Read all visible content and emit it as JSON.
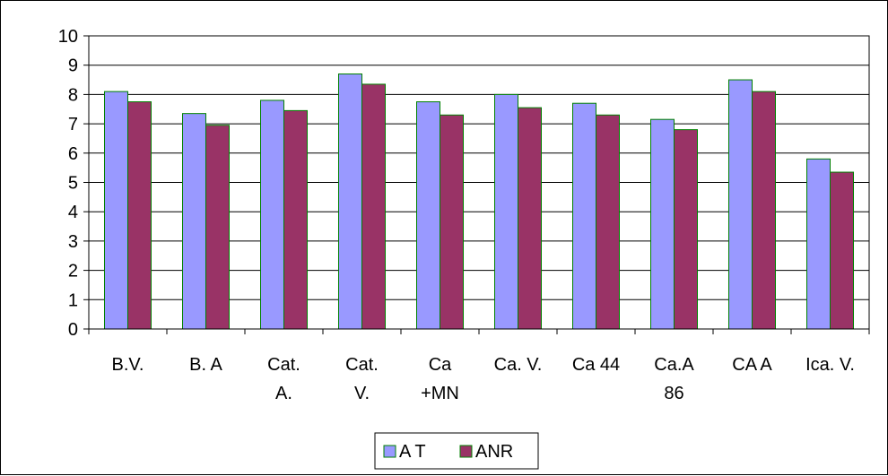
{
  "chart_data": {
    "type": "bar",
    "categories": [
      [
        "B.V."
      ],
      [
        "B. A"
      ],
      [
        "Cat.",
        "A."
      ],
      [
        "Cat.",
        "V."
      ],
      [
        "Ca",
        "+MN"
      ],
      [
        "Ca. V."
      ],
      [
        "Ca 44"
      ],
      [
        "Ca.A",
        "86"
      ],
      [
        "CA A"
      ],
      [
        "Ica. V."
      ]
    ],
    "series": [
      {
        "name": "A T",
        "color": "#9999FF",
        "values": [
          8.1,
          7.35,
          7.8,
          8.7,
          7.75,
          8.0,
          7.7,
          7.15,
          8.5,
          5.8
        ]
      },
      {
        "name": "ANR",
        "color": "#993366",
        "values": [
          7.75,
          6.95,
          7.45,
          8.35,
          7.3,
          7.55,
          7.3,
          6.8,
          8.1,
          5.35
        ]
      }
    ],
    "yticks": [
      "0",
      "1",
      "2",
      "3",
      "4",
      "5",
      "6",
      "7",
      "8",
      "9",
      "10"
    ],
    "ylim": [
      0,
      10
    ],
    "grid": true,
    "legend_position": "bottom-center",
    "bar_outline_color": "#008000"
  }
}
